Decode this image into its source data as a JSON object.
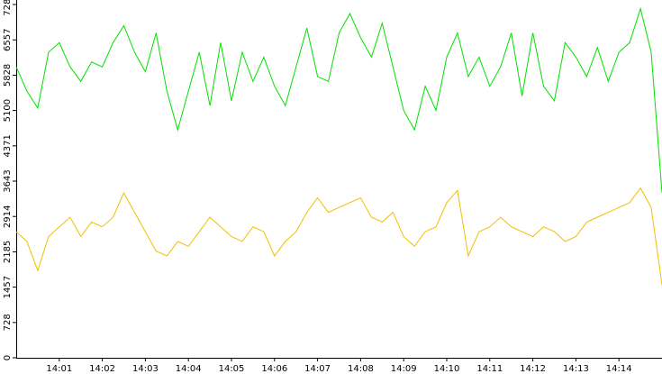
{
  "chart_data": {
    "type": "line",
    "x": [
      0,
      0.25,
      0.5,
      0.75,
      1,
      1.25,
      1.5,
      1.75,
      2,
      2.25,
      2.5,
      2.75,
      3,
      3.25,
      3.5,
      3.75,
      4,
      4.25,
      4.5,
      4.75,
      5,
      5.25,
      5.5,
      5.75,
      6,
      6.25,
      6.5,
      6.75,
      7,
      7.25,
      7.5,
      7.75,
      8,
      8.25,
      8.5,
      8.75,
      9,
      9.25,
      9.5,
      9.75,
      10,
      10.25,
      10.5,
      10.75,
      11,
      11.25,
      11.5,
      11.75,
      12,
      12.25,
      12.5,
      12.75,
      13,
      13.25,
      13.5,
      13.75,
      14,
      14.25,
      14.5,
      14.75,
      15
    ],
    "series": [
      {
        "color": "#00e000",
        "values": [
          6000,
          5500,
          5150,
          6300,
          6500,
          6000,
          5700,
          6100,
          6000,
          6500,
          6850,
          6300,
          5900,
          6700,
          5500,
          4700,
          5500,
          6300,
          5200,
          6500,
          5300,
          6300,
          5700,
          6200,
          5600,
          5200,
          6000,
          6800,
          5800,
          5700,
          6700,
          7100,
          6600,
          6200,
          6900,
          6000,
          5100,
          4700,
          5600,
          5100,
          6200,
          6700,
          5800,
          6200,
          5600,
          6000,
          6700,
          5400,
          6700,
          5600,
          5300,
          6500,
          6200,
          5800,
          6400,
          5700,
          6300,
          6500,
          7200,
          6300,
          3400
        ]
      },
      {
        "color": "#f0c000",
        "values": [
          2600,
          2400,
          1800,
          2500,
          2700,
          2900,
          2500,
          2800,
          2700,
          2900,
          3400,
          3000,
          2600,
          2200,
          2100,
          2400,
          2300,
          2600,
          2900,
          2700,
          2500,
          2400,
          2700,
          2600,
          2100,
          2400,
          2600,
          3000,
          3300,
          3000,
          3100,
          3200,
          3300,
          2900,
          2800,
          3000,
          2500,
          2300,
          2600,
          2700,
          3200,
          3450,
          2100,
          2600,
          2700,
          2900,
          2700,
          2600,
          2500,
          2700,
          2600,
          2400,
          2500,
          2800,
          2900,
          3000,
          3100,
          3200,
          3500,
          3100,
          1500
        ]
      }
    ],
    "xlim": [
      0,
      15
    ],
    "xticks": [
      {
        "value": 1,
        "label": "14:01"
      },
      {
        "value": 2,
        "label": "14:02"
      },
      {
        "value": 3,
        "label": "14:03"
      },
      {
        "value": 4,
        "label": "14:04"
      },
      {
        "value": 5,
        "label": "14:05"
      },
      {
        "value": 6,
        "label": "14:06"
      },
      {
        "value": 7,
        "label": "14:07"
      },
      {
        "value": 8,
        "label": "14:08"
      },
      {
        "value": 9,
        "label": "14:09"
      },
      {
        "value": 10,
        "label": "14:10"
      },
      {
        "value": 11,
        "label": "14:11"
      },
      {
        "value": 12,
        "label": "14:12"
      },
      {
        "value": 13,
        "label": "14:13"
      },
      {
        "value": 14,
        "label": "14:14"
      }
    ],
    "ylim": [
      0,
      7286
    ],
    "yticks": [
      0,
      728,
      1457,
      2185,
      2914,
      3643,
      4371,
      5100,
      5828,
      6557,
      7286
    ]
  }
}
